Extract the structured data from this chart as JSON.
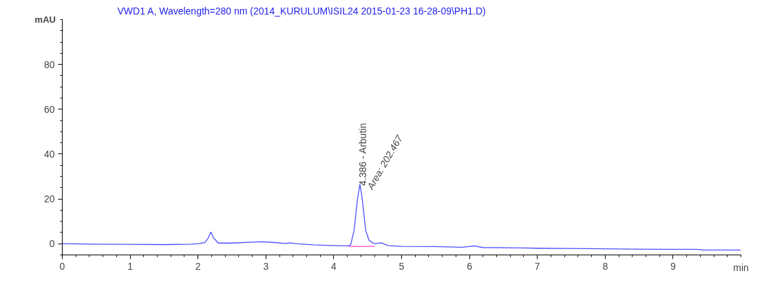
{
  "chart_data": {
    "type": "line",
    "title": "VWD1 A, Wavelength=280 nm (2014_KURULUM\\ISIL24 2015-01-23 16-28-09\\PH1.D)",
    "xlabel": "min",
    "ylabel": "mAU",
    "xlim": [
      0,
      10
    ],
    "ylim": [
      -5,
      100
    ],
    "xticks": [
      0,
      1,
      2,
      3,
      4,
      5,
      6,
      7,
      8,
      9
    ],
    "yticks": [
      0,
      20,
      40,
      60,
      80
    ],
    "grid": false,
    "marker": "none",
    "line_style": "solid",
    "series": [
      {
        "color": "#4d4dff",
        "x": [
          0,
          0.5,
          1.0,
          1.5,
          1.9,
          2.0,
          2.1,
          2.15,
          2.19,
          2.23,
          2.3,
          2.5,
          2.8,
          2.95,
          3.1,
          3.3,
          3.35,
          3.45,
          3.7,
          4.0,
          4.2,
          4.25,
          4.3,
          4.35,
          4.386,
          4.42,
          4.47,
          4.52,
          4.6,
          4.7,
          4.8,
          5.0,
          5.5,
          5.9,
          6.07,
          6.2,
          6.6,
          7.0,
          7.5,
          7.8,
          8.0,
          8.5,
          9.0,
          9.35,
          9.45,
          10.0
        ],
        "values": [
          0,
          -0.2,
          -0.3,
          -0.4,
          -0.2,
          0,
          0.5,
          2.5,
          5.2,
          2.5,
          0.3,
          0.3,
          0.7,
          0.9,
          0.6,
          0.1,
          0.4,
          0,
          -0.5,
          -0.8,
          -1.0,
          -0.5,
          6,
          20,
          26.5,
          20,
          6,
          1.5,
          0,
          0.4,
          -0.8,
          -1.2,
          -1.3,
          -1.6,
          -1.0,
          -1.7,
          -1.8,
          -2.0,
          -2.1,
          -2.2,
          -2.3,
          -2.4,
          -2.5,
          -2.5,
          -2.8,
          -2.8
        ]
      },
      {
        "color": "#ff44cc",
        "x": [
          4.22,
          4.6
        ],
        "values": [
          -1.2,
          -1.2
        ]
      }
    ],
    "annotations": [
      {
        "text": "4.386 -  Arbutin",
        "x": 4.386,
        "y": 26.5
      },
      {
        "text": "Area: 202.467",
        "x": 4.386,
        "y": 26.5
      }
    ]
  }
}
